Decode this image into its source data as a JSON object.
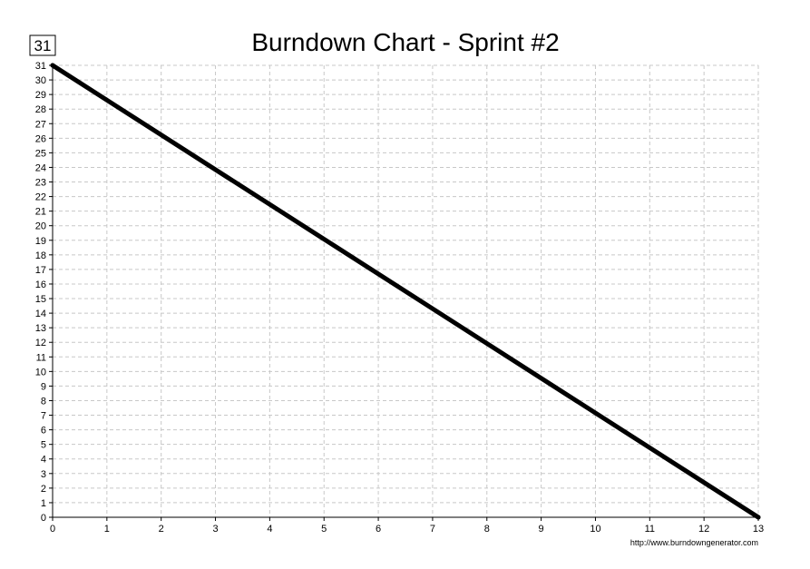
{
  "chart_data": {
    "type": "line",
    "title": "Burndown Chart - Sprint #2",
    "total_points_label": "31",
    "footer": "http://www.burndowngenerator.com",
    "xlabel": "",
    "ylabel": "",
    "xlim": [
      0,
      13
    ],
    "ylim": [
      0,
      31
    ],
    "x_ticks": [
      "0",
      "1",
      "2",
      "3",
      "4",
      "5",
      "6",
      "7",
      "8",
      "9",
      "10",
      "11",
      "12",
      "13"
    ],
    "y_ticks": [
      "0",
      "1",
      "2",
      "3",
      "4",
      "5",
      "6",
      "7",
      "8",
      "9",
      "10",
      "11",
      "12",
      "13",
      "14",
      "15",
      "16",
      "17",
      "18",
      "19",
      "20",
      "21",
      "22",
      "23",
      "24",
      "25",
      "26",
      "27",
      "28",
      "29",
      "30",
      "31"
    ],
    "grid": true,
    "legend": "none",
    "series": [
      {
        "x": [
          0,
          13
        ],
        "y": [
          31,
          0
        ],
        "color": "#000000"
      }
    ]
  }
}
